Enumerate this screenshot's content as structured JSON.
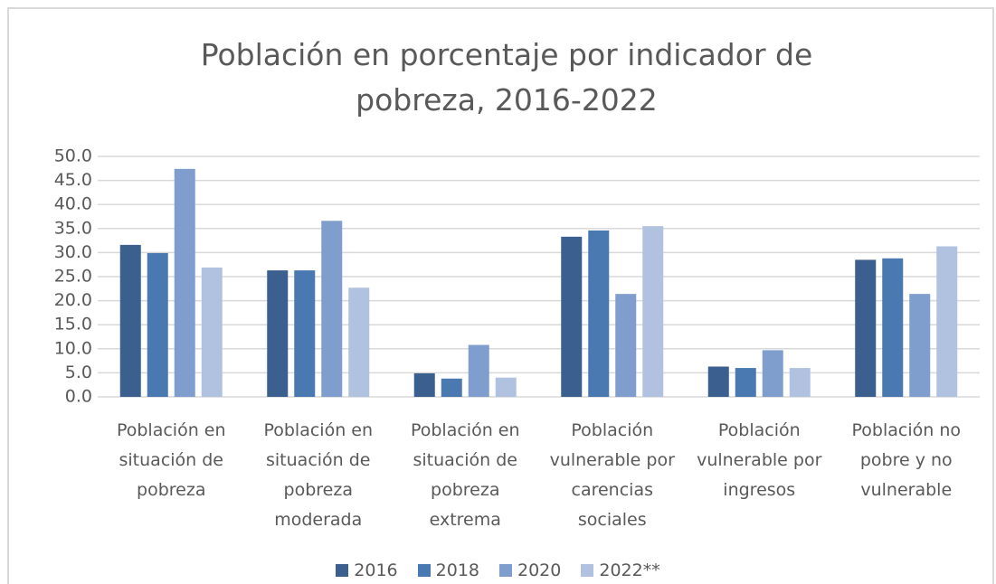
{
  "chart_data": {
    "type": "bar",
    "title": "Población en porcentaje por indicador de pobreza, 2016-2022",
    "categories": [
      "Población en situación de pobreza",
      "Población en situación de pobreza moderada",
      "Población en situación de pobreza extrema",
      "Población vulnerable por carencias sociales",
      "Población vulnerable por ingresos",
      "Población no pobre y no vulnerable"
    ],
    "series": [
      {
        "name": "2016",
        "color": "#3b5f8e",
        "values": [
          31.6,
          26.3,
          4.9,
          33.3,
          6.3,
          28.5
        ]
      },
      {
        "name": "2018",
        "color": "#4a78b0",
        "values": [
          29.9,
          26.3,
          3.8,
          34.6,
          6.0,
          28.8
        ]
      },
      {
        "name": "2020",
        "color": "#7f9ece",
        "values": [
          47.4,
          36.6,
          10.8,
          21.4,
          9.7,
          21.4
        ]
      },
      {
        "name": "2022**",
        "color": "#b1c2e0",
        "values": [
          26.9,
          22.7,
          4.0,
          35.5,
          6.0,
          31.3
        ]
      }
    ],
    "ylim": [
      0,
      50
    ],
    "yticks": [
      {
        "value": 0,
        "label": "0.0"
      },
      {
        "value": 5,
        "label": "5.0"
      },
      {
        "value": 10,
        "label": "10.0"
      },
      {
        "value": 15,
        "label": "15.0"
      },
      {
        "value": 20,
        "label": "20.0"
      },
      {
        "value": 25,
        "label": "25.0"
      },
      {
        "value": 30,
        "label": "30.0"
      },
      {
        "value": 35,
        "label": "35.0"
      },
      {
        "value": 40,
        "label": "40.0"
      },
      {
        "value": 45,
        "label": "45.0"
      },
      {
        "value": 50,
        "label": "50.0"
      }
    ],
    "grid": true,
    "legend": "bottom"
  }
}
